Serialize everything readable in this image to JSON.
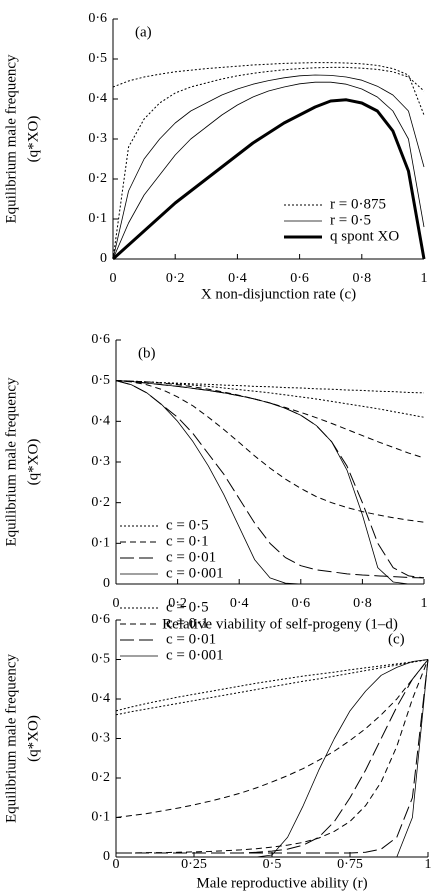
{
  "chart_data": [
    {
      "type": "line",
      "panel_label": "(a)",
      "ylabel": [
        "Equilibrium male frequency",
        "(q*XO)"
      ],
      "xlabel": "X non-disjunction rate (c)",
      "xlim": [
        0,
        1
      ],
      "ylim": [
        0,
        0.6
      ],
      "xticks": [
        0,
        {
          "value": 0.2,
          "label": "0·2"
        },
        {
          "value": 0.4,
          "label": "0·4"
        },
        {
          "value": 0.6,
          "label": "0·6"
        },
        {
          "value": 0.8,
          "label": "0·8"
        },
        1
      ],
      "yticks": [
        0,
        {
          "value": 0.1,
          "label": "0·1"
        },
        {
          "value": 0.2,
          "label": "0·2"
        },
        {
          "value": 0.3,
          "label": "0·3"
        },
        {
          "value": 0.4,
          "label": "0·4"
        },
        {
          "value": 0.5,
          "label": "0·5"
        },
        {
          "value": 0.6,
          "label": "0·6"
        }
      ],
      "legend": "lower right",
      "x": [
        0,
        0.05,
        0.1,
        0.15,
        0.2,
        0.25,
        0.3,
        0.35,
        0.4,
        0.45,
        0.5,
        0.55,
        0.6,
        0.65,
        0.7,
        0.75,
        0.8,
        0.85,
        0.9,
        0.95,
        1
      ],
      "series": [
        {
          "name": "r = 0·875",
          "style": "dotted",
          "linewidth": 1,
          "color": "#000000",
          "values": [
            0.43,
            0.445,
            0.455,
            0.462,
            0.468,
            0.472,
            0.476,
            0.479,
            0.482,
            0.485,
            0.487,
            0.489,
            0.49,
            0.491,
            0.491,
            0.49,
            0.488,
            0.484,
            0.476,
            0.46,
            0.36
          ]
        },
        {
          "style": "dotted",
          "linewidth": 1,
          "color": "#000000",
          "values": [
            0,
            0.28,
            0.35,
            0.39,
            0.415,
            0.43,
            0.44,
            0.45,
            0.458,
            0.464,
            0.469,
            0.473,
            0.476,
            0.478,
            0.479,
            0.479,
            0.477,
            0.474,
            0.468,
            0.455,
            0.42
          ]
        },
        {
          "name": "r = 0·5",
          "style": "solid",
          "linewidth": 0.8,
          "color": "#000000",
          "values": [
            0,
            0.17,
            0.25,
            0.3,
            0.34,
            0.37,
            0.39,
            0.41,
            0.425,
            0.437,
            0.446,
            0.453,
            0.458,
            0.46,
            0.459,
            0.455,
            0.447,
            0.432,
            0.41,
            0.37,
            0.23
          ]
        },
        {
          "style": "solid",
          "linewidth": 0.8,
          "color": "#000000",
          "values": [
            0,
            0.09,
            0.16,
            0.21,
            0.26,
            0.3,
            0.33,
            0.36,
            0.385,
            0.405,
            0.42,
            0.43,
            0.438,
            0.442,
            0.442,
            0.437,
            0.425,
            0.405,
            0.37,
            0.3,
            0.08
          ]
        },
        {
          "name": "q spont XO",
          "style": "solid",
          "linewidth": 3,
          "color": "#000000",
          "values": [
            0,
            0.035,
            0.07,
            0.105,
            0.14,
            0.17,
            0.2,
            0.23,
            0.26,
            0.29,
            0.315,
            0.34,
            0.36,
            0.38,
            0.395,
            0.398,
            0.39,
            0.37,
            0.32,
            0.22,
            0
          ]
        }
      ]
    },
    {
      "type": "line",
      "panel_label": "(b)",
      "ylabel": [
        "Equilibrium male frequency",
        "(q*XO)"
      ],
      "xlabel": "Relative viability of self-progeny (1–d)",
      "xlim": [
        0,
        1
      ],
      "ylim": [
        0,
        0.6
      ],
      "xticks": [
        0,
        {
          "value": 0.2,
          "label": "0·2"
        },
        {
          "value": 0.4,
          "label": "0·4"
        },
        {
          "value": 0.6,
          "label": "0·6"
        },
        {
          "value": 0.8,
          "label": "0·8"
        },
        1
      ],
      "yticks": [
        0,
        {
          "value": 0.1,
          "label": "0·1"
        },
        {
          "value": 0.2,
          "label": "0·2"
        },
        {
          "value": 0.3,
          "label": "0·3"
        },
        {
          "value": 0.4,
          "label": "0·4"
        },
        {
          "value": 0.5,
          "label": "0·5"
        },
        {
          "value": 0.6,
          "label": "0·6"
        }
      ],
      "legend": "lower left",
      "x": [
        0,
        0.05,
        0.1,
        0.15,
        0.2,
        0.25,
        0.3,
        0.35,
        0.4,
        0.45,
        0.5,
        0.55,
        0.6,
        0.65,
        0.7,
        0.75,
        0.8,
        0.85,
        0.9,
        0.95,
        1
      ],
      "series": [
        {
          "name": "c = 0·5",
          "style": "dotted",
          "linewidth": 1,
          "color": "#000000",
          "values": [
            0.5,
            0.498,
            0.497,
            0.495,
            0.494,
            0.492,
            0.491,
            0.489,
            0.488,
            0.486,
            0.485,
            0.483,
            0.482,
            0.48,
            0.479,
            0.477,
            0.476,
            0.474,
            0.473,
            0.471,
            0.47
          ]
        },
        {
          "style": "dotted",
          "linewidth": 1,
          "color": "#000000",
          "values": [
            0.5,
            0.499,
            0.497,
            0.495,
            0.492,
            0.489,
            0.486,
            0.482,
            0.478,
            0.474,
            0.47,
            0.465,
            0.46,
            0.455,
            0.449,
            0.443,
            0.437,
            0.431,
            0.424,
            0.417,
            0.41
          ]
        },
        {
          "name": "c = 0·1",
          "style": "dashed",
          "linewidth": 1,
          "color": "#000000",
          "values": [
            0.5,
            0.499,
            0.497,
            0.494,
            0.49,
            0.485,
            0.479,
            0.472,
            0.464,
            0.455,
            0.445,
            0.434,
            0.422,
            0.409,
            0.395,
            0.38,
            0.365,
            0.35,
            0.336,
            0.322,
            0.31
          ]
        },
        {
          "style": "dashed",
          "linewidth": 1,
          "color": "#000000",
          "values": [
            0.5,
            0.497,
            0.49,
            0.478,
            0.46,
            0.438,
            0.41,
            0.38,
            0.348,
            0.315,
            0.285,
            0.258,
            0.235,
            0.215,
            0.2,
            0.188,
            0.178,
            0.17,
            0.163,
            0.157,
            0.152
          ]
        },
        {
          "name": "c = 0·01",
          "style": "longdash",
          "linewidth": 1,
          "color": "#000000",
          "values": [
            0.5,
            0.498,
            0.494,
            0.49,
            0.486,
            0.481,
            0.476,
            0.47,
            0.463,
            0.455,
            0.445,
            0.432,
            0.415,
            0.39,
            0.35,
            0.29,
            0.2,
            0.1,
            0.04,
            0.02,
            0.015
          ]
        },
        {
          "style": "longdash",
          "linewidth": 1,
          "color": "#000000",
          "values": [
            0.5,
            0.49,
            0.47,
            0.44,
            0.41,
            0.37,
            0.32,
            0.27,
            0.21,
            0.15,
            0.1,
            0.065,
            0.045,
            0.035,
            0.03,
            0.025,
            0.022,
            0.02,
            0.018,
            0.016,
            0.015
          ]
        },
        {
          "name": "c = 0·001",
          "style": "solid",
          "linewidth": 0.8,
          "color": "#000000",
          "values": [
            0.5,
            0.49,
            0.47,
            0.44,
            0.4,
            0.35,
            0.29,
            0.22,
            0.14,
            0.06,
            0.015,
            0.002,
            0,
            0,
            0,
            0,
            0,
            0,
            0,
            0,
            0
          ]
        },
        {
          "style": "solid",
          "linewidth": 0.8,
          "color": "#000000",
          "values": [
            0.5,
            0.498,
            0.494,
            0.49,
            0.486,
            0.481,
            0.476,
            0.47,
            0.463,
            0.455,
            0.445,
            0.432,
            0.415,
            0.39,
            0.35,
            0.28,
            0.17,
            0.04,
            0.005,
            0,
            0
          ]
        }
      ]
    },
    {
      "type": "line",
      "panel_label": "(c)",
      "ylabel": [
        "Equilibrium male frequency",
        "(q*XO)"
      ],
      "xlabel": "Male reproductive ability (r)",
      "xlim": [
        0,
        1
      ],
      "ylim": [
        0,
        0.6
      ],
      "xticks": [
        0,
        {
          "value": 0.25,
          "label": "0·25"
        },
        {
          "value": 0.5,
          "label": "0·5"
        },
        {
          "value": 0.75,
          "label": "0·75"
        },
        1
      ],
      "yticks": [
        0,
        {
          "value": 0.1,
          "label": "0·1"
        },
        {
          "value": 0.2,
          "label": "0·2"
        },
        {
          "value": 0.3,
          "label": "0·3"
        },
        {
          "value": 0.4,
          "label": "0·4"
        },
        {
          "value": 0.5,
          "label": "0·5"
        },
        {
          "value": 0.6,
          "label": "0·6"
        }
      ],
      "legend": "upper left",
      "x": [
        0,
        0.05,
        0.1,
        0.15,
        0.2,
        0.25,
        0.3,
        0.35,
        0.4,
        0.45,
        0.5,
        0.55,
        0.6,
        0.65,
        0.7,
        0.75,
        0.8,
        0.85,
        0.9,
        0.95,
        1
      ],
      "series": [
        {
          "name": "c = 0·5",
          "style": "dotted",
          "linewidth": 1,
          "color": "#000000",
          "values": [
            0.37,
            0.38,
            0.389,
            0.397,
            0.405,
            0.412,
            0.419,
            0.426,
            0.433,
            0.44,
            0.446,
            0.452,
            0.458,
            0.463,
            0.468,
            0.474,
            0.479,
            0.484,
            0.489,
            0.494,
            0.5
          ]
        },
        {
          "style": "dotted",
          "linewidth": 1,
          "color": "#000000",
          "values": [
            0.36,
            0.368,
            0.375,
            0.382,
            0.389,
            0.396,
            0.403,
            0.41,
            0.417,
            0.424,
            0.431,
            0.438,
            0.445,
            0.451,
            0.458,
            0.465,
            0.472,
            0.479,
            0.486,
            0.493,
            0.5
          ]
        },
        {
          "name": "c = 0·1",
          "style": "dashed",
          "linewidth": 1,
          "color": "#000000",
          "values": [
            0.1,
            0.105,
            0.11,
            0.117,
            0.124,
            0.132,
            0.141,
            0.151,
            0.162,
            0.175,
            0.19,
            0.206,
            0.224,
            0.245,
            0.268,
            0.295,
            0.325,
            0.36,
            0.4,
            0.45,
            0.5
          ]
        },
        {
          "style": "dashed",
          "linewidth": 1,
          "color": "#000000",
          "values": [
            0.01,
            0.01,
            0.011,
            0.011,
            0.012,
            0.013,
            0.014,
            0.016,
            0.018,
            0.021,
            0.025,
            0.03,
            0.037,
            0.048,
            0.065,
            0.09,
            0.13,
            0.19,
            0.28,
            0.4,
            0.5
          ]
        },
        {
          "name": "c = 0·01",
          "style": "longdash",
          "linewidth": 1,
          "color": "#000000",
          "values": [
            0.01,
            0.01,
            0.01,
            0.01,
            0.01,
            0.01,
            0.01,
            0.01,
            0.01,
            0.012,
            0.015,
            0.02,
            0.03,
            0.05,
            0.09,
            0.15,
            0.22,
            0.3,
            0.38,
            0.45,
            0.5
          ]
        },
        {
          "style": "longdash",
          "linewidth": 1,
          "color": "#000000",
          "values": [
            0.01,
            0.01,
            0.01,
            0.01,
            0.01,
            0.01,
            0.01,
            0.01,
            0.01,
            0.01,
            0.01,
            0.01,
            0.01,
            0.01,
            0.01,
            0.01,
            0.012,
            0.02,
            0.05,
            0.15,
            0.5
          ]
        },
        {
          "name": "c = 0·001",
          "style": "solid",
          "linewidth": 0.8,
          "color": "#000000",
          "values": [
            0,
            0,
            0,
            0,
            0,
            0,
            0,
            0,
            0,
            0,
            0.005,
            0.05,
            0.13,
            0.22,
            0.3,
            0.37,
            0.42,
            0.46,
            0.48,
            0.495,
            0.5
          ]
        },
        {
          "style": "solid",
          "linewidth": 0.8,
          "color": "#000000",
          "values": [
            0,
            0,
            0,
            0,
            0,
            0,
            0,
            0,
            0,
            0,
            0,
            0,
            0,
            0,
            0,
            0,
            0,
            0,
            0,
            0.1,
            0.5
          ]
        }
      ]
    }
  ]
}
